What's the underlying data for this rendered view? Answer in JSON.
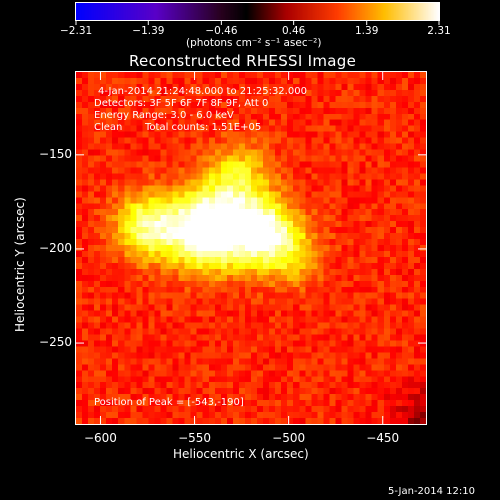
{
  "chart_data": {
    "type": "heatmap",
    "title": "Reconstructed RHESSI Image",
    "xlabel": "Heliocentric X (arcsec)",
    "ylabel": "Heliocentric Y (arcsec)",
    "xlim": [
      -613,
      -427
    ],
    "ylim": [
      -293,
      -106
    ],
    "xticks": [
      -600,
      -550,
      -500,
      -450
    ],
    "yticks": [
      -250,
      -200,
      -150
    ],
    "xtick_labels": [
      "−600",
      "−550",
      "−500",
      "−450"
    ],
    "ytick_labels": [
      "−250",
      "−200",
      "−150"
    ],
    "colormap": "hot",
    "colorbar": {
      "range": [
        -2.31,
        2.31
      ],
      "tick_labels": [
        "−2.31",
        "−1.39",
        "−0.46",
        "0.46",
        "1.39",
        "2.31"
      ],
      "ticks": [
        -2.31,
        -1.39,
        -0.46,
        0.46,
        1.39,
        2.31
      ],
      "unit_label": "(photons cm⁻² s⁻¹ asec⁻²)"
    },
    "sources": [
      {
        "x": -543,
        "y": -190,
        "peak": 2.31
      },
      {
        "x": -515,
        "y": -190,
        "peak": 1.7
      },
      {
        "x": -575,
        "y": -188,
        "peak": 1.5
      },
      {
        "x": -527,
        "y": -162,
        "peak": 1.15
      },
      {
        "x": -500,
        "y": -202,
        "peak": 1.0
      }
    ],
    "background_level": 0.85,
    "annotations": {
      "time_range": "4-Jan-2014 21:24:48.000 to 21:25:32.000",
      "detectors": "Detectors: 3F 5F 6F 7F 8F 9F, Att 0",
      "energy_range": "Energy Range: 3.0 - 6.0 keV",
      "clean_label": "Clean",
      "total_counts": "Total counts: 1.51E+05",
      "peak_position": "Position of Peak = [-543,-190]"
    },
    "timestamp": "5-Jan-2014 12:10"
  }
}
